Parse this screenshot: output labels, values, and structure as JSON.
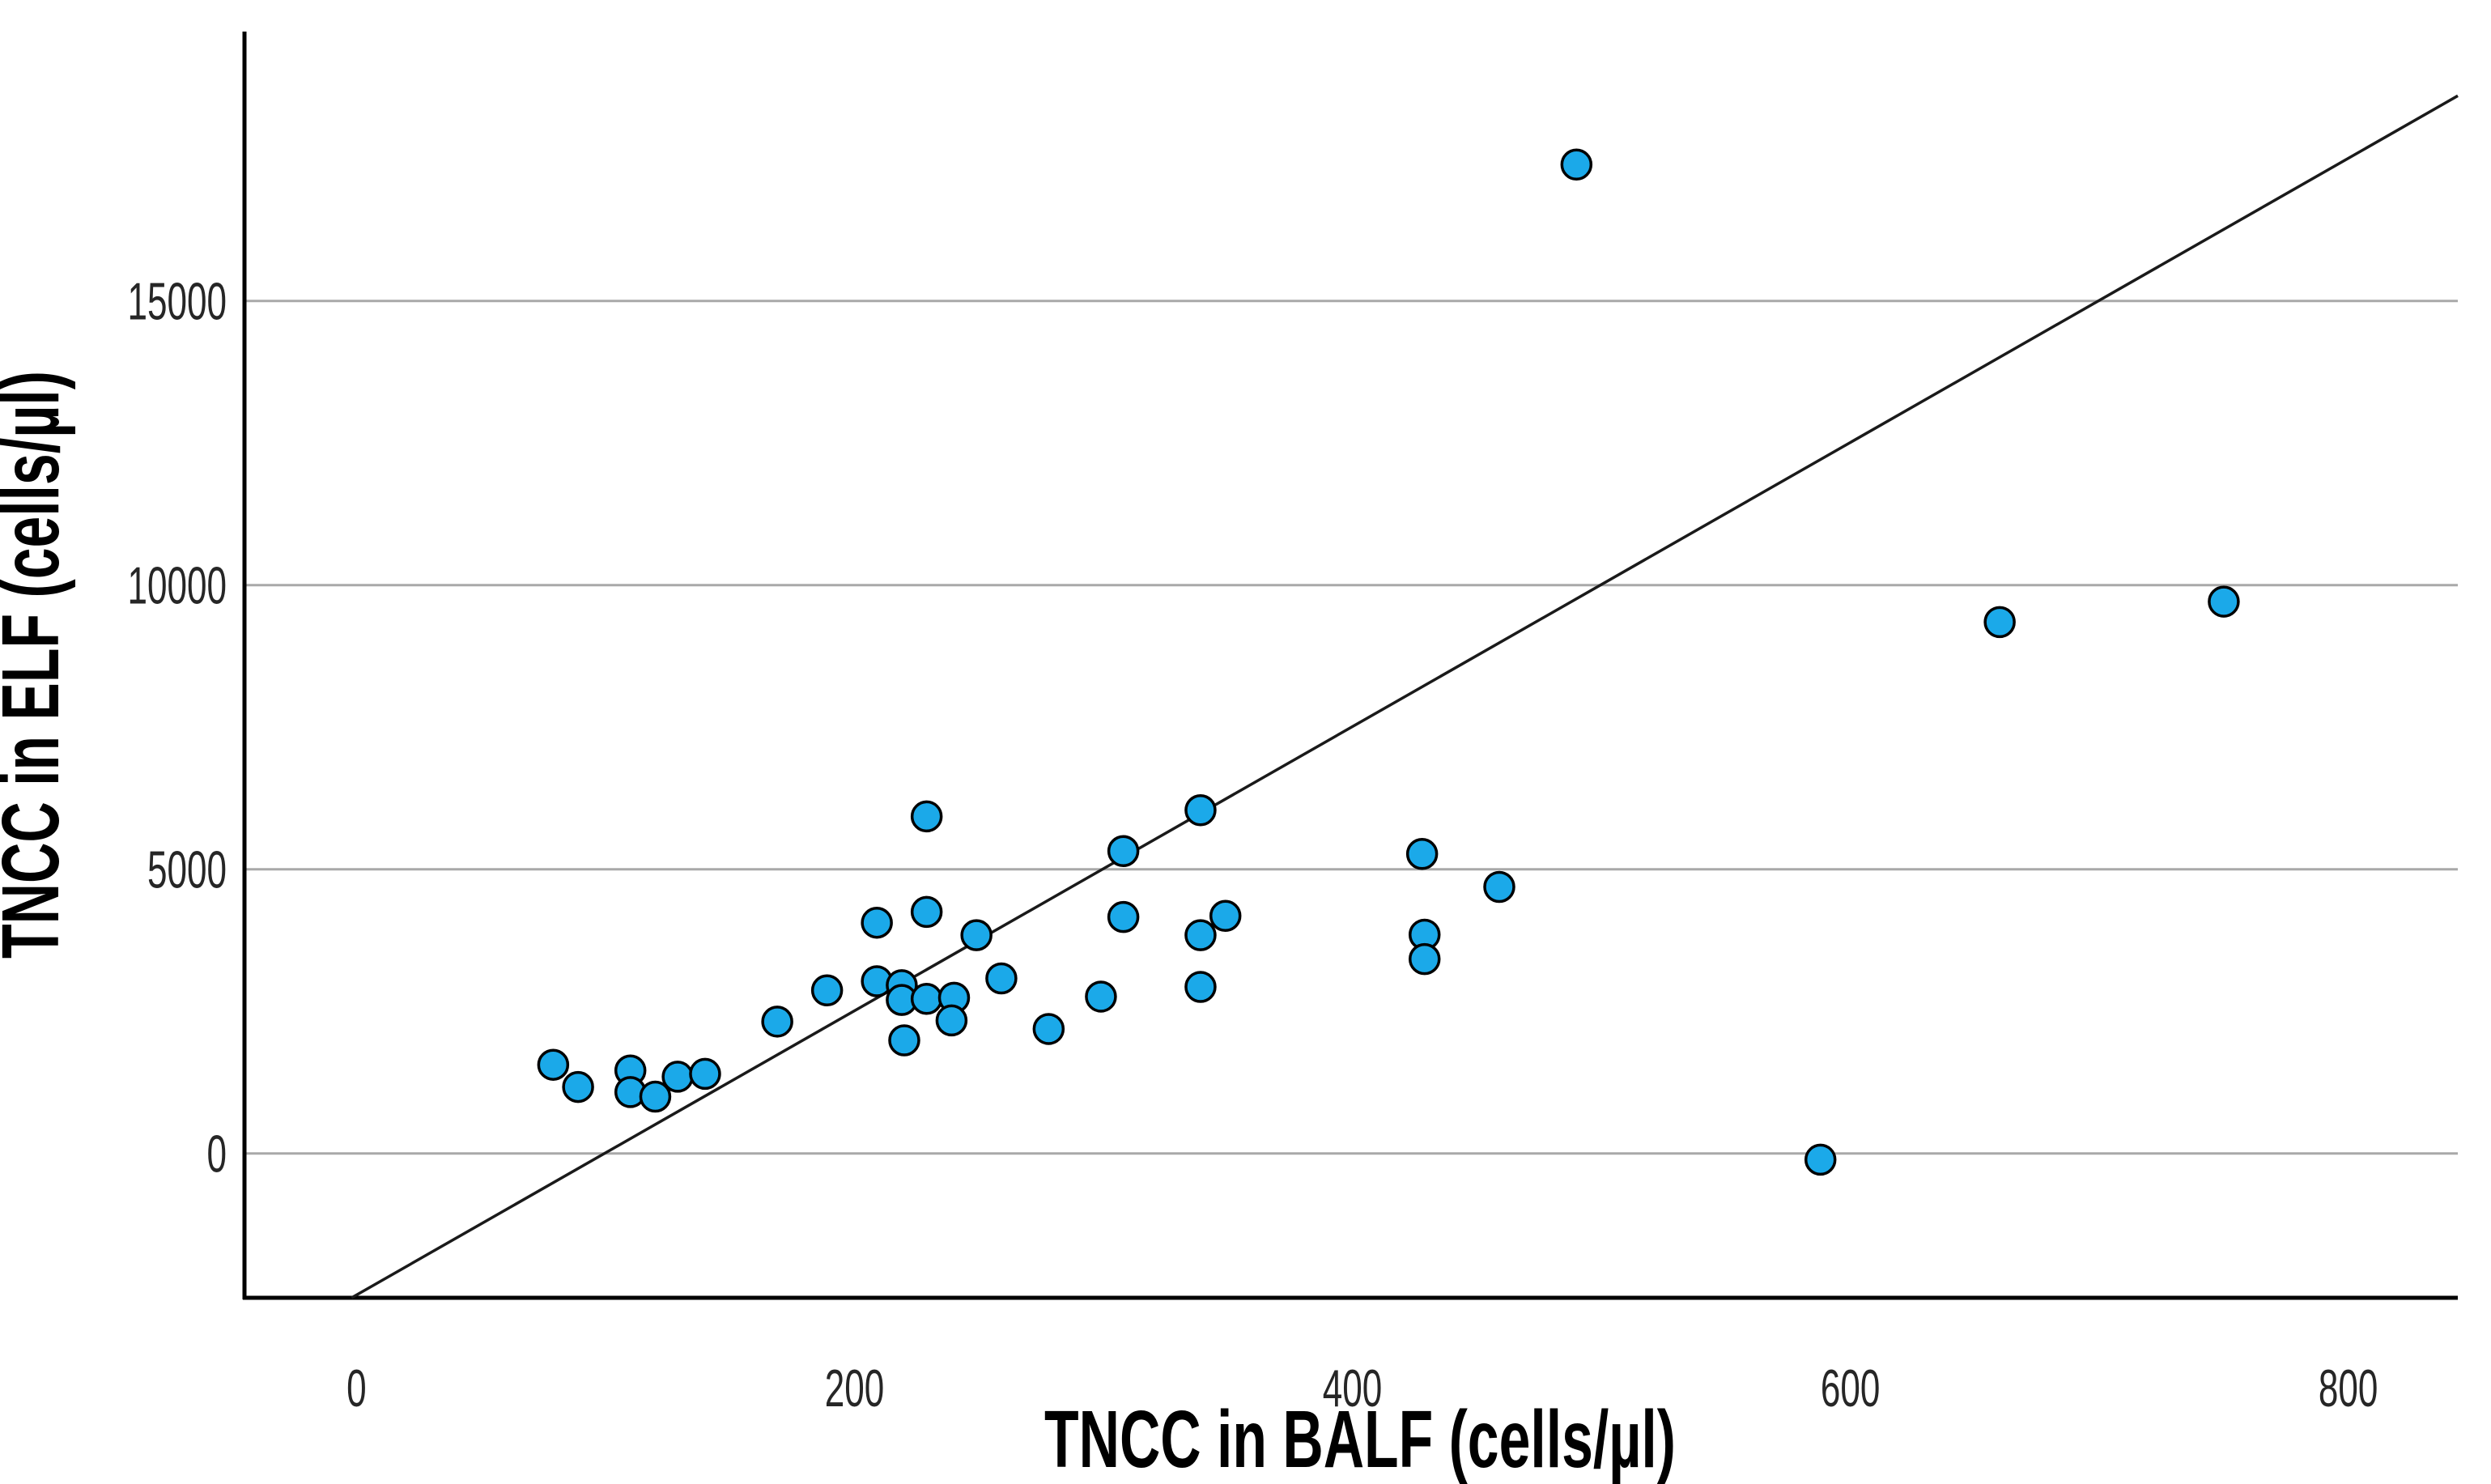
{
  "chart_data": {
    "type": "scatter",
    "title": "",
    "xlabel": "TNCC in BALF (cells/µl)",
    "ylabel": "TNCC in ELF (cells/µl)",
    "x_ticks": [
      0,
      200,
      400,
      600,
      800
    ],
    "y_ticks": [
      0,
      5000,
      10000,
      15000
    ],
    "xlim": [
      -45,
      844
    ],
    "ylim": [
      -2540,
      19740
    ],
    "grid": "horizontal-only",
    "legend_position": "none",
    "marker_fill": "#1BA9E9",
    "marker_edge": "#000000",
    "gridline_color": "#A9A9A9",
    "axis_color": "#000000",
    "fit_line": {
      "slope": 25,
      "intercept": -2490,
      "color": "#1a1a1a"
    },
    "points": [
      [
        79,
        1560
      ],
      [
        89,
        1170
      ],
      [
        110,
        1460
      ],
      [
        110,
        1080
      ],
      [
        120,
        1000
      ],
      [
        129,
        1350
      ],
      [
        140,
        1400
      ],
      [
        169,
        2320
      ],
      [
        189,
        2870
      ],
      [
        209,
        4060
      ],
      [
        229,
        5930
      ],
      [
        229,
        4250
      ],
      [
        249,
        3840
      ],
      [
        259,
        3080
      ],
      [
        209,
        3030
      ],
      [
        219,
        2960
      ],
      [
        219,
        2700
      ],
      [
        229,
        2720
      ],
      [
        240,
        2740
      ],
      [
        239,
        2340
      ],
      [
        220,
        1990
      ],
      [
        278,
        2190
      ],
      [
        299,
        2760
      ],
      [
        308,
        5320
      ],
      [
        308,
        4160
      ],
      [
        339,
        6040
      ],
      [
        349,
        4180
      ],
      [
        339,
        3840
      ],
      [
        339,
        2930
      ],
      [
        428,
        5270
      ],
      [
        429,
        3850
      ],
      [
        429,
        3420
      ],
      [
        459,
        4690
      ],
      [
        490,
        17400
      ],
      [
        588,
        -110
      ],
      [
        660,
        9350
      ],
      [
        750,
        9710
      ]
    ]
  }
}
